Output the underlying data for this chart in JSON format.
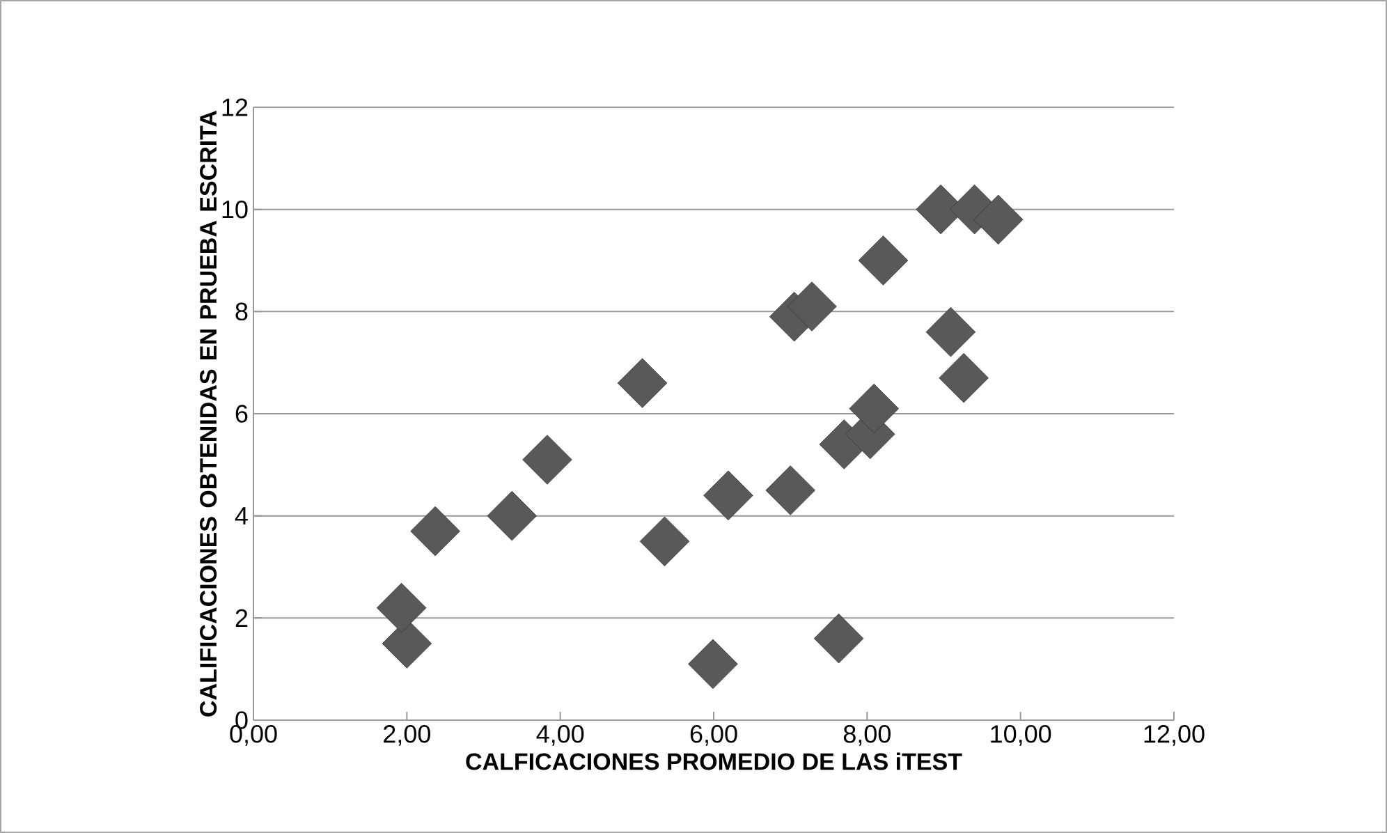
{
  "chart_data": {
    "type": "scatter",
    "xlabel": "CALFICACIONES  PROMEDIO DE LAS iTEST",
    "ylabel": "CALIFICACIONES OBTENIDAS EN PRUEBA ESCRITA",
    "x": [
      2.0,
      1.93,
      2.37,
      3.37,
      3.83,
      5.07,
      5.36,
      5.99,
      6.19,
      7.0,
      7.05,
      7.28,
      7.63,
      7.7,
      8.04,
      8.09,
      8.21,
      8.96,
      9.09,
      9.26,
      9.4,
      9.71
    ],
    "series": [
      {
        "color": "#595959",
        "values": [
          1.5,
          2.2,
          3.7,
          4.0,
          5.1,
          6.6,
          3.5,
          1.1,
          4.4,
          4.5,
          7.9,
          8.1,
          1.6,
          5.4,
          5.6,
          6.1,
          9.0,
          10.0,
          7.6,
          6.7,
          10.0,
          9.8
        ]
      }
    ],
    "xlim": [
      0,
      12
    ],
    "ylim": [
      0,
      12
    ],
    "xticks": [
      {
        "value": 0,
        "label": "0,00"
      },
      {
        "value": 2,
        "label": "2,00"
      },
      {
        "value": 4,
        "label": "4,00"
      },
      {
        "value": 6,
        "label": "6,00"
      },
      {
        "value": 8,
        "label": "8,00"
      },
      {
        "value": 10,
        "label": "10,00"
      },
      {
        "value": 12,
        "label": "12,00"
      }
    ],
    "yticks": [
      0,
      2,
      4,
      6,
      8,
      10,
      12
    ],
    "grid": "y",
    "marker": "diamond"
  }
}
